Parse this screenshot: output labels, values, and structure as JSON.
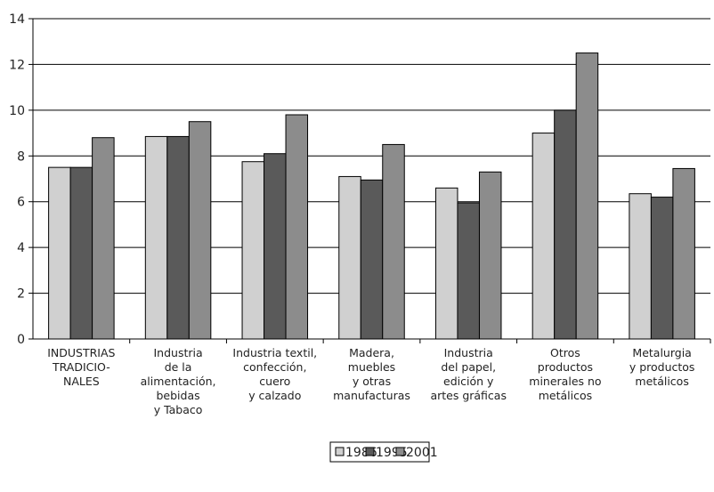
{
  "chart_data": {
    "type": "bar",
    "categories": [
      [
        "INDUSTRIAS",
        "TRADICIO-",
        "NALES"
      ],
      [
        "Industria",
        "de la",
        "alimentación,",
        "bebidas",
        "y Tabaco"
      ],
      [
        "Industria textil,",
        "confección,",
        "cuero",
        "y calzado"
      ],
      [
        "Madera,",
        "muebles",
        "y otras",
        "manufacturas"
      ],
      [
        "Industria",
        "del papel,",
        "edición y",
        "artes gráficas"
      ],
      [
        "Otros",
        "productos",
        "minerales no",
        "metálicos"
      ],
      [
        "Metalurgia",
        "y productos",
        "metálicos"
      ]
    ],
    "series": [
      {
        "name": "1986",
        "color": "#d0d0d0",
        "values": [
          7.5,
          8.85,
          7.75,
          7.1,
          6.6,
          9.0,
          6.35
        ]
      },
      {
        "name": "1995",
        "color": "#5a5a5a",
        "values": [
          7.5,
          8.85,
          8.1,
          6.95,
          5.95,
          10.0,
          6.2
        ]
      },
      {
        "name": "2001",
        "color": "#8c8c8c",
        "values": [
          8.8,
          9.5,
          9.8,
          8.5,
          7.3,
          12.5,
          7.45
        ]
      }
    ],
    "yticks": [
      "0",
      "2",
      "4",
      "6",
      "8",
      "10",
      "12",
      "14"
    ],
    "ylim": [
      0,
      14
    ],
    "grid": true,
    "legend_position": "bottom-center"
  }
}
